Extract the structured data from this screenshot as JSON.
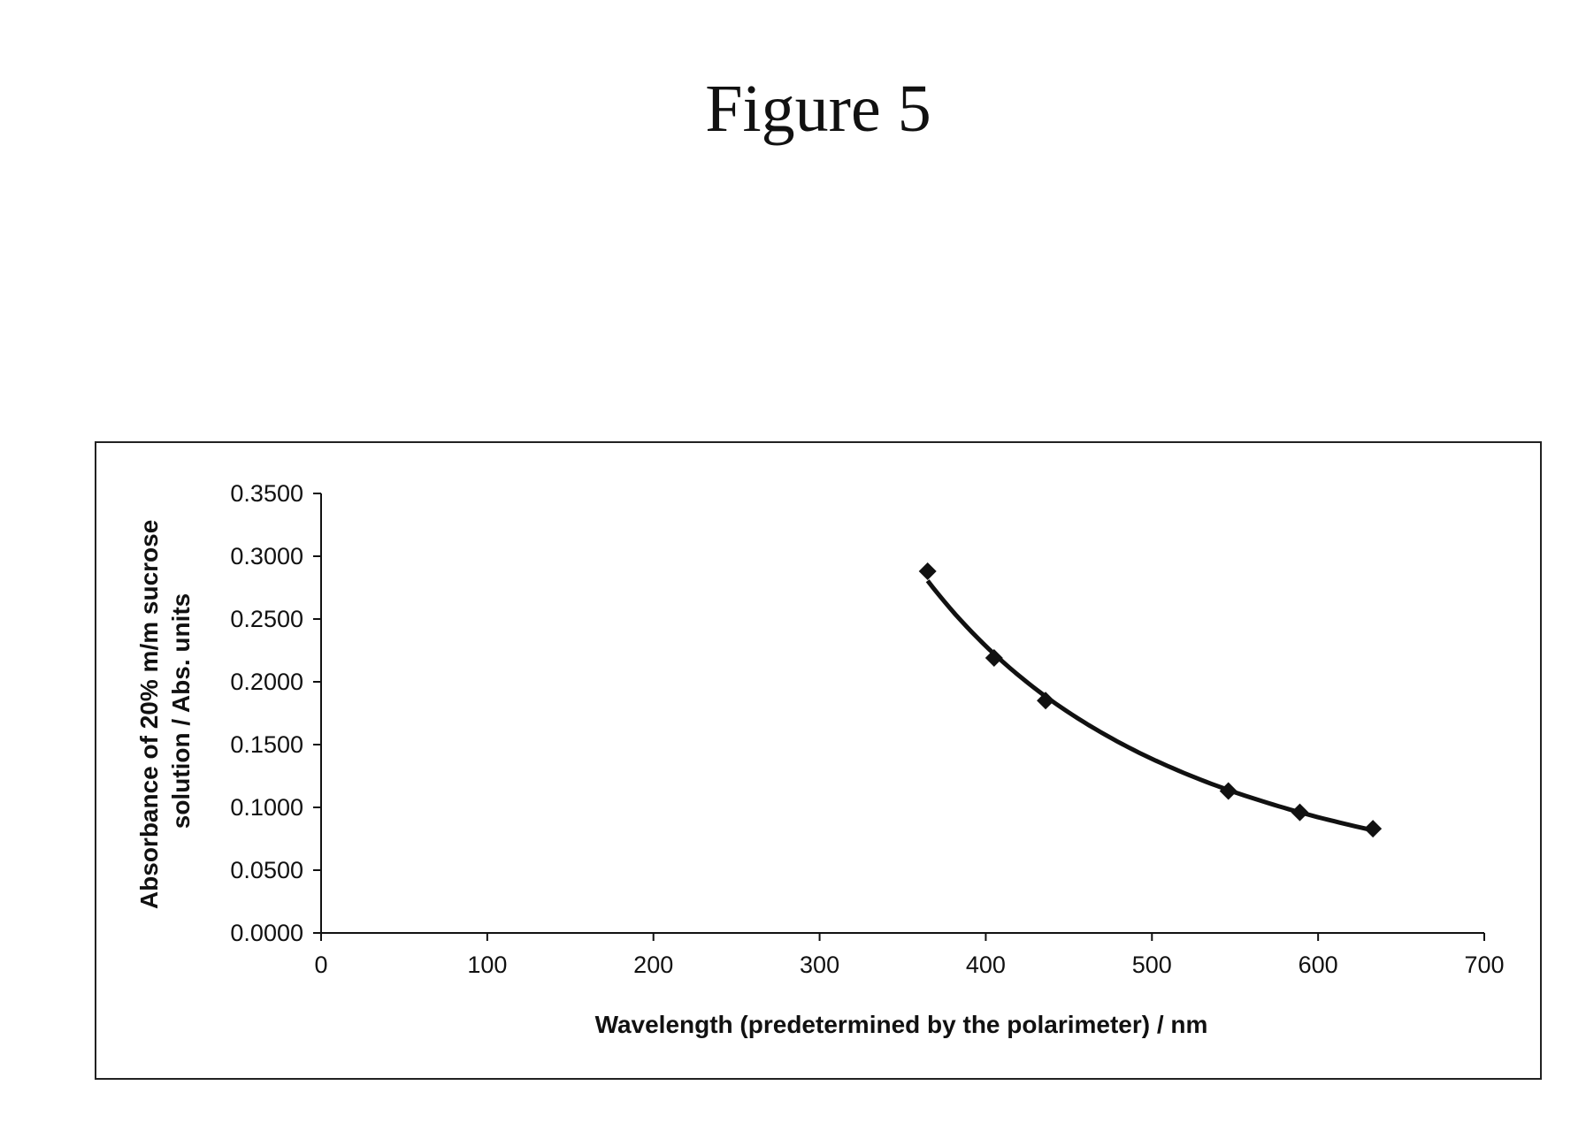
{
  "figure_title": "Figure 5",
  "chart_data": {
    "type": "scatter",
    "xlabel": "Wavelength (predetermined by the polarimeter) / nm",
    "ylabel_lines": [
      "Absorbance of 20% m/m sucrose",
      "solution / Abs. units"
    ],
    "xlim": [
      0,
      700
    ],
    "ylim": [
      0,
      0.35
    ],
    "x_ticks": [
      0,
      100,
      200,
      300,
      400,
      500,
      600,
      700
    ],
    "y_ticks": [
      0,
      0.05,
      0.1,
      0.15,
      0.2,
      0.25,
      0.3,
      0.35
    ],
    "x_tick_labels": [
      "0",
      "100",
      "200",
      "300",
      "400",
      "500",
      "600",
      "700"
    ],
    "y_tick_labels": [
      "0.0000",
      "0.0500",
      "0.1000",
      "0.1500",
      "0.2000",
      "0.2500",
      "0.3000",
      "0.3500"
    ],
    "grid": false,
    "legend": false,
    "trendline": true,
    "marker": "diamond",
    "series": [
      {
        "x": [
          365,
          405,
          436,
          546,
          589,
          633
        ],
        "y": [
          0.288,
          0.219,
          0.185,
          0.113,
          0.096,
          0.083
        ]
      }
    ]
  }
}
